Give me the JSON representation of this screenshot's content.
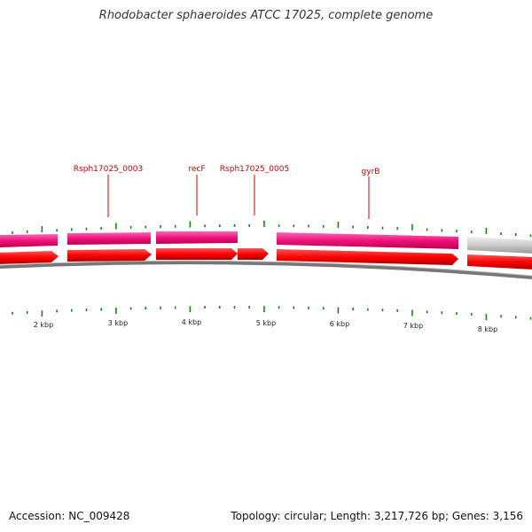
{
  "title": "Rhodobacter sphaeroides ATCC 17025, complete genome",
  "accession": "Accession: NC_009428",
  "summary": "Topology: circular; Length: 3,217,726 bp; Genes: 3,156",
  "gene_labels": [
    {
      "name": "Rsph17025_0003"
    },
    {
      "name": "recF"
    },
    {
      "name": "Rsph17025_0005"
    },
    {
      "name": "gyrB"
    }
  ],
  "scale_labels": [
    "2 kbp",
    "3 kbp",
    "4 kbp",
    "5 kbp",
    "6 kbp",
    "7 kbp",
    "8 kbp"
  ],
  "colors": {
    "gene_forward": "#ff0000",
    "cds_feature": "#ee1177",
    "other_feature": "#c8c8c8",
    "backbone": "#888888",
    "ticks": "#118811",
    "label": "#cc0000"
  }
}
